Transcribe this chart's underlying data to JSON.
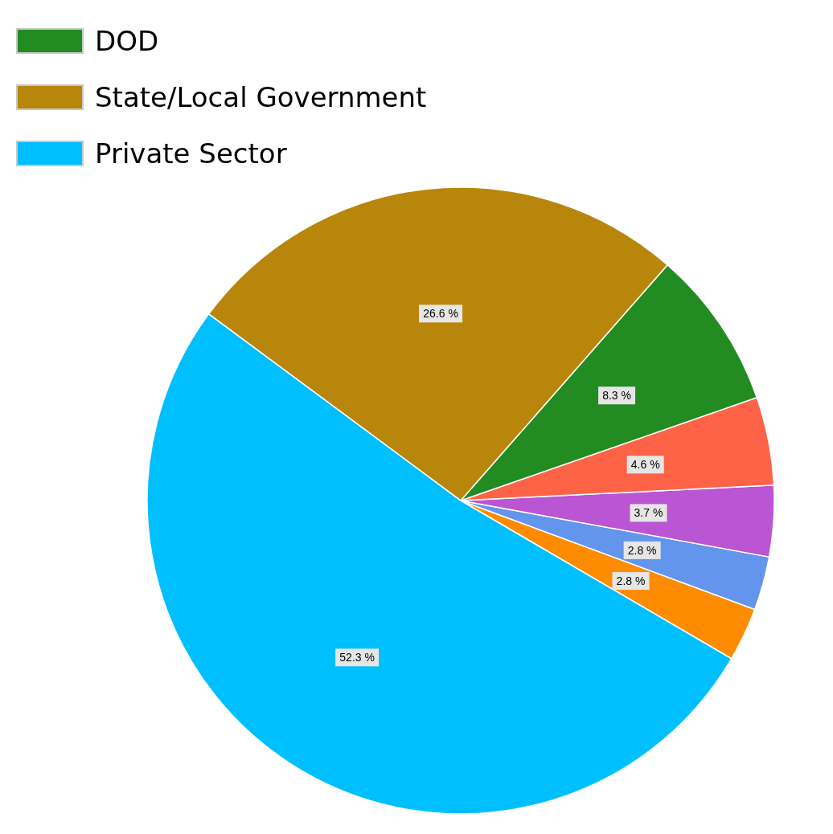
{
  "chart_data": {
    "type": "pie",
    "categories": [
      null,
      null,
      null,
      null,
      "DOD",
      "State/Local Government",
      "Private Sector"
    ],
    "values": [
      2.8,
      2.8,
      3.7,
      4.6,
      8.3,
      26.6,
      52.3
    ],
    "colors": [
      "#ff8c00",
      "#6495ed",
      "#ba55d3",
      "#ff6347",
      "#228b22",
      "#b8860b",
      "#00bfff"
    ],
    "value_labels": [
      "2.8 %",
      "2.8 %",
      "3.7 %",
      "4.6 %",
      "8.3 %",
      "26.6 %",
      "52.3 %"
    ],
    "legend": "top left"
  }
}
